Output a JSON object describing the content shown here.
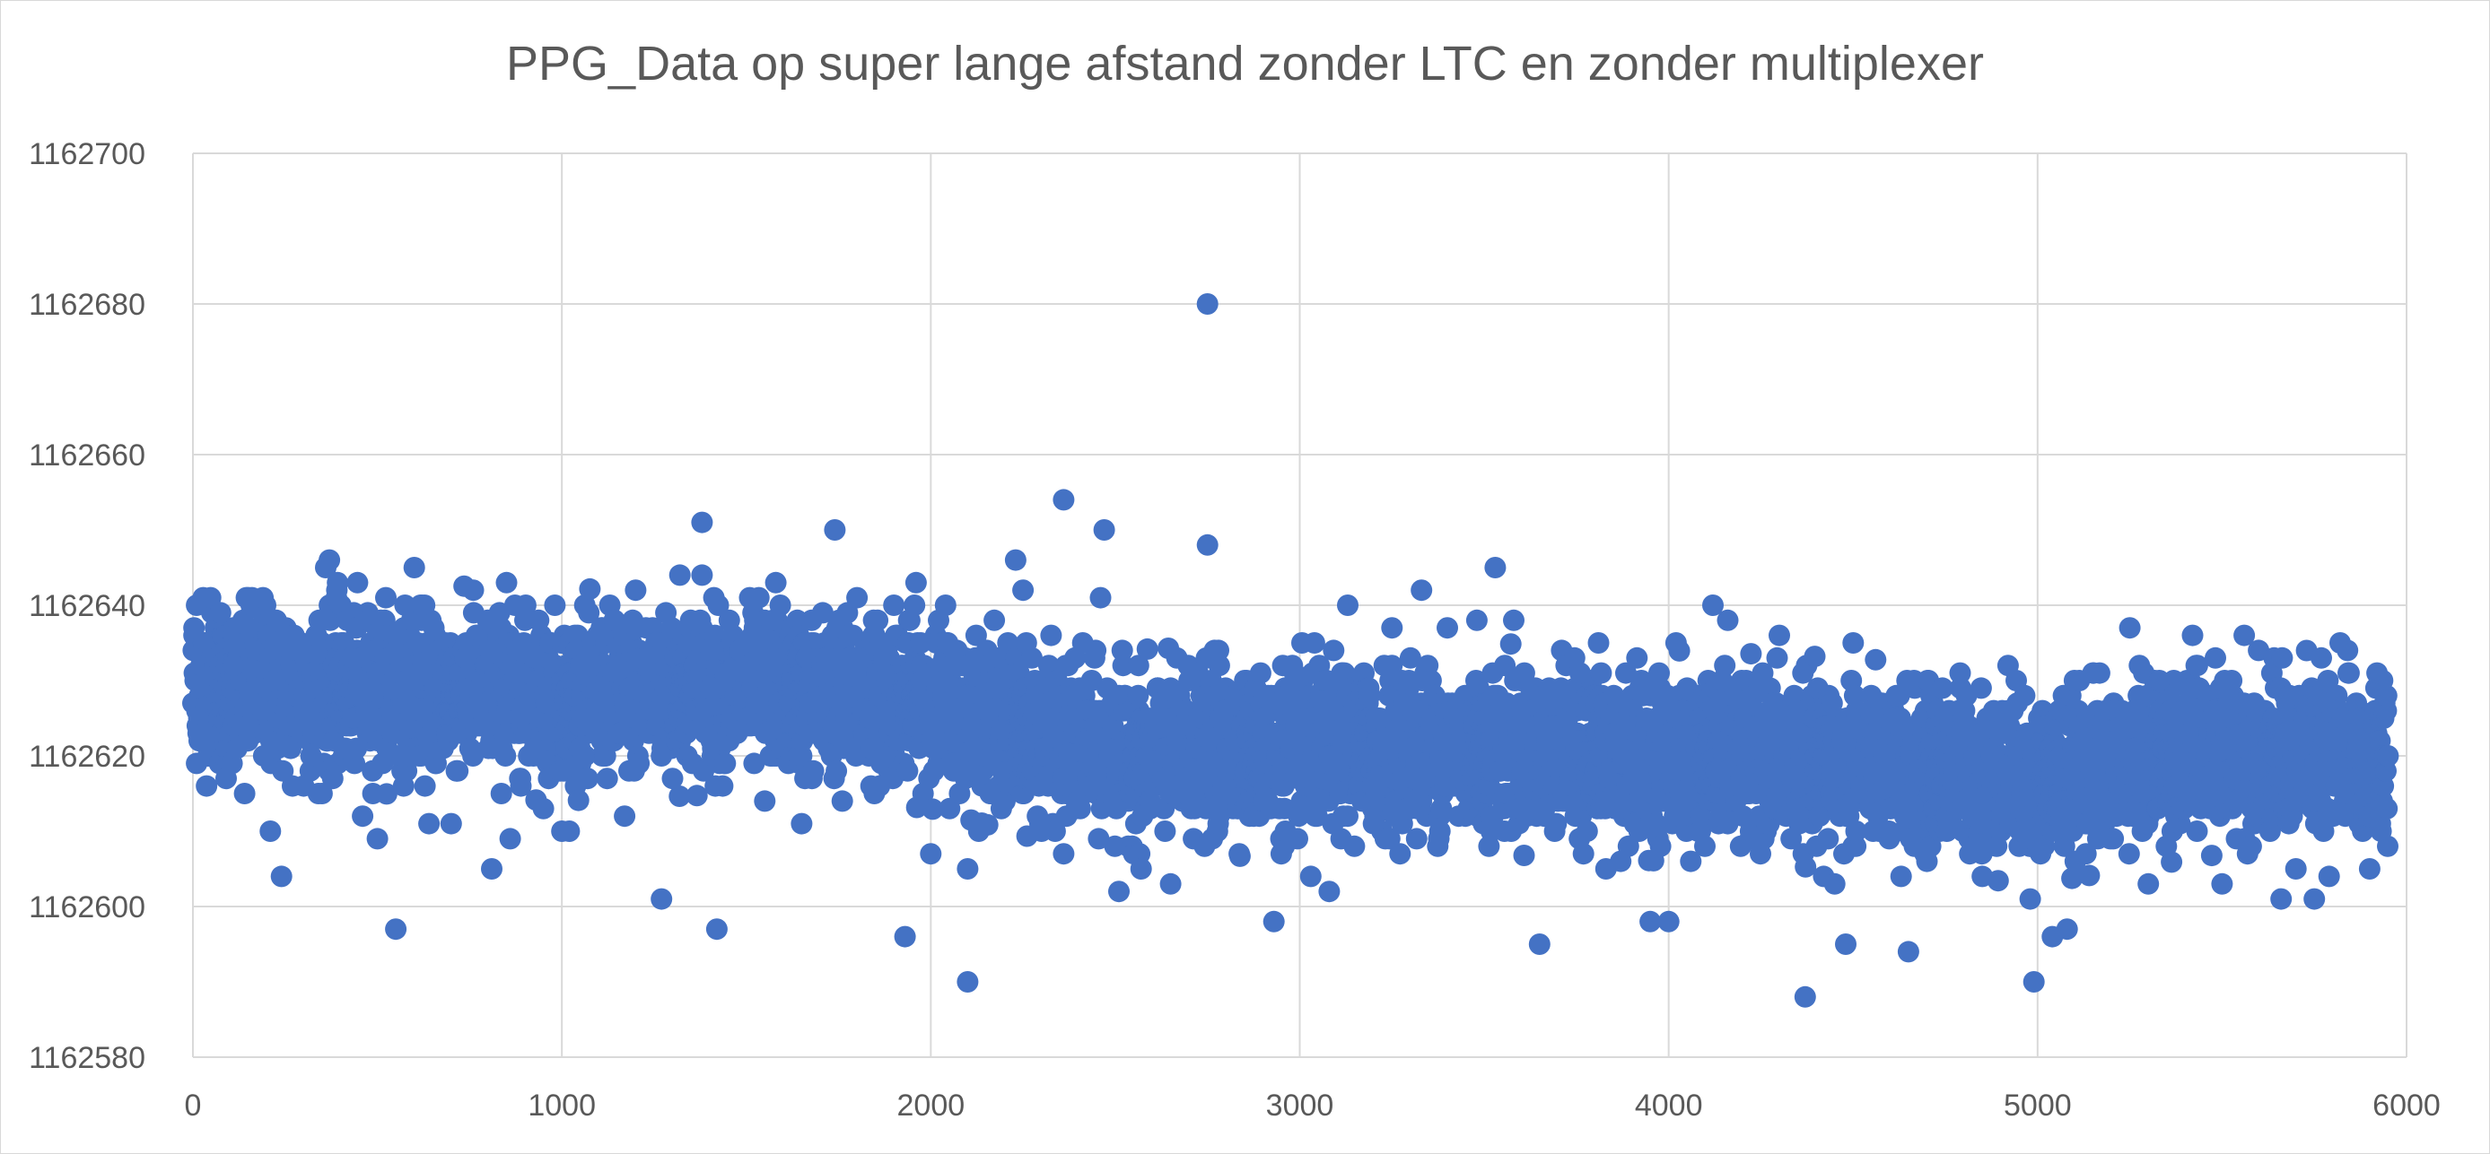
{
  "chart_data": {
    "type": "scatter",
    "title": "PPG_Data op super lange afstand zonder LTC en zonder multiplexer",
    "xlabel": "",
    "ylabel": "",
    "xlim": [
      0,
      6000
    ],
    "ylim": [
      1162580,
      1162700
    ],
    "x_ticks": [
      "0",
      "1000",
      "2000",
      "3000",
      "4000",
      "5000",
      "6000"
    ],
    "y_ticks": [
      "1162580",
      "1162600",
      "1162620",
      "1162640",
      "1162660",
      "1162680",
      "1162700"
    ],
    "grid": true,
    "legend": "none",
    "marker_color": "#4472C4",
    "point_count": 5950,
    "trend": [
      [
        0,
        1162629
      ],
      [
        500,
        1162629
      ],
      [
        1000,
        1162628
      ],
      [
        1500,
        1162629
      ],
      [
        2000,
        1162627
      ],
      [
        2500,
        1162620
      ],
      [
        3000,
        1162621
      ],
      [
        3500,
        1162621
      ],
      [
        4000,
        1162620
      ],
      [
        4500,
        1162619
      ],
      [
        5000,
        1162617
      ],
      [
        5500,
        1162621
      ],
      [
        5950,
        1162619
      ]
    ],
    "spread": 5,
    "points": [
      [
        3,
        1162637
      ],
      [
        10,
        1162640
      ],
      [
        28,
        1162641
      ],
      [
        48,
        1162641
      ],
      [
        75,
        1162639
      ],
      [
        90,
        1162617
      ],
      [
        110,
        1162632
      ],
      [
        140,
        1162615
      ],
      [
        150,
        1162641
      ],
      [
        160,
        1162641
      ],
      [
        190,
        1162641
      ],
      [
        210,
        1162610
      ],
      [
        240,
        1162604
      ],
      [
        270,
        1162616
      ],
      [
        300,
        1162616
      ],
      [
        340,
        1162615
      ],
      [
        360,
        1162645
      ],
      [
        370,
        1162646
      ],
      [
        390,
        1162642
      ],
      [
        460,
        1162612
      ],
      [
        500,
        1162609
      ],
      [
        550,
        1162597
      ],
      [
        570,
        1162620
      ],
      [
        600,
        1162645
      ],
      [
        620,
        1162640
      ],
      [
        640,
        1162611
      ],
      [
        700,
        1162611
      ],
      [
        760,
        1162642
      ],
      [
        810,
        1162605
      ],
      [
        850,
        1162643
      ],
      [
        860,
        1162609
      ],
      [
        900,
        1162638
      ],
      [
        950,
        1162613
      ],
      [
        1000,
        1162610
      ],
      [
        1020,
        1162610
      ],
      [
        1070,
        1162617
      ],
      [
        1170,
        1162612
      ],
      [
        1200,
        1162642
      ],
      [
        1270,
        1162601
      ],
      [
        1300,
        1162617
      ],
      [
        1320,
        1162644
      ],
      [
        1380,
        1162651
      ],
      [
        1380,
        1162644
      ],
      [
        1420,
        1162597
      ],
      [
        1550,
        1162614
      ],
      [
        1580,
        1162643
      ],
      [
        1650,
        1162611
      ],
      [
        1740,
        1162650
      ],
      [
        1760,
        1162614
      ],
      [
        1800,
        1162641
      ],
      [
        1900,
        1162640
      ],
      [
        1930,
        1162596
      ],
      [
        1960,
        1162643
      ],
      [
        2000,
        1162607
      ],
      [
        2040,
        1162640
      ],
      [
        2100,
        1162605
      ],
      [
        2100,
        1162590
      ],
      [
        2130,
        1162610
      ],
      [
        2230,
        1162646
      ],
      [
        2250,
        1162642
      ],
      [
        2300,
        1162610
      ],
      [
        2360,
        1162654
      ],
      [
        2360,
        1162607
      ],
      [
        2460,
        1162641
      ],
      [
        2470,
        1162650
      ],
      [
        2510,
        1162602
      ],
      [
        2570,
        1162605
      ],
      [
        2650,
        1162603
      ],
      [
        2700,
        1162630
      ],
      [
        2750,
        1162680
      ],
      [
        2750,
        1162648
      ],
      [
        2780,
        1162634
      ],
      [
        2930,
        1162598
      ],
      [
        2950,
        1162607
      ],
      [
        3030,
        1162604
      ],
      [
        3080,
        1162602
      ],
      [
        3130,
        1162640
      ],
      [
        3200,
        1162611
      ],
      [
        3250,
        1162637
      ],
      [
        3300,
        1162633
      ],
      [
        3330,
        1162642
      ],
      [
        3380,
        1162610
      ],
      [
        3400,
        1162637
      ],
      [
        3480,
        1162638
      ],
      [
        3530,
        1162645
      ],
      [
        3580,
        1162638
      ],
      [
        3650,
        1162595
      ],
      [
        3760,
        1162631
      ],
      [
        3810,
        1162635
      ],
      [
        3830,
        1162605
      ],
      [
        3870,
        1162606
      ],
      [
        3950,
        1162598
      ],
      [
        4000,
        1162598
      ],
      [
        4020,
        1162635
      ],
      [
        4060,
        1162606
      ],
      [
        4120,
        1162640
      ],
      [
        4160,
        1162638
      ],
      [
        4300,
        1162636
      ],
      [
        4370,
        1162588
      ],
      [
        4420,
        1162604
      ],
      [
        4450,
        1162603
      ],
      [
        4480,
        1162595
      ],
      [
        4500,
        1162635
      ],
      [
        4630,
        1162604
      ],
      [
        4650,
        1162594
      ],
      [
        4700,
        1162606
      ],
      [
        4790,
        1162631
      ],
      [
        4850,
        1162604
      ],
      [
        4920,
        1162632
      ],
      [
        4980,
        1162601
      ],
      [
        4990,
        1162590
      ],
      [
        5040,
        1162596
      ],
      [
        5080,
        1162597
      ],
      [
        5150,
        1162631
      ],
      [
        5250,
        1162637
      ],
      [
        5300,
        1162603
      ],
      [
        5330,
        1162630
      ],
      [
        5420,
        1162636
      ],
      [
        5500,
        1162603
      ],
      [
        5560,
        1162636
      ],
      [
        5660,
        1162601
      ],
      [
        5700,
        1162605
      ],
      [
        5750,
        1162601
      ],
      [
        5790,
        1162604
      ],
      [
        5820,
        1162635
      ],
      [
        5840,
        1162634
      ],
      [
        5900,
        1162605
      ],
      [
        5920,
        1162631
      ],
      [
        5950,
        1162620
      ]
    ]
  }
}
